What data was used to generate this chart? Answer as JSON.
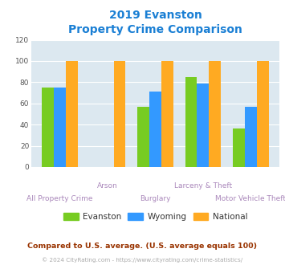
{
  "title_line1": "2019 Evanston",
  "title_line2": "Property Crime Comparison",
  "categories": [
    "All Property Crime",
    "Arson",
    "Burglary",
    "Larceny & Theft",
    "Motor Vehicle Theft"
  ],
  "series": {
    "Evanston": [
      75,
      0,
      57,
      85,
      36
    ],
    "Wyoming": [
      75,
      0,
      71,
      79,
      57
    ],
    "National": [
      100,
      100,
      100,
      100,
      100
    ]
  },
  "colors": {
    "Evanston": "#77cc22",
    "Wyoming": "#3399ff",
    "National": "#ffaa22"
  },
  "ylim": [
    0,
    120
  ],
  "yticks": [
    0,
    20,
    40,
    60,
    80,
    100,
    120
  ],
  "plot_bg": "#dce8f0",
  "title_color": "#1a7fd4",
  "xlabel_color_top": "#aa88bb",
  "xlabel_color_bot": "#aa88bb",
  "footnote1": "Compared to U.S. average. (U.S. average equals 100)",
  "footnote2": "© 2024 CityRating.com - https://www.cityrating.com/crime-statistics/",
  "footnote1_color": "#993300",
  "footnote2_color": "#aaaaaa",
  "label_top": [
    "",
    "Arson",
    "",
    "Larceny & Theft",
    ""
  ],
  "label_bot": [
    "All Property Crime",
    "",
    "Burglary",
    "",
    "Motor Vehicle Theft"
  ]
}
